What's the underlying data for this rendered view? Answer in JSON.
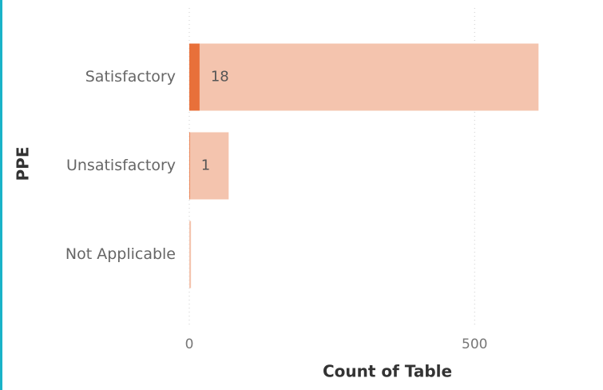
{
  "chart_data": {
    "type": "bar",
    "orientation": "horizontal",
    "x_label": "Count of Table",
    "y_label": "PPE",
    "categories": [
      "Satisfactory",
      "Unsatisfactory",
      "Not Applicable"
    ],
    "series": [
      {
        "color": "#f4c4ae",
        "values": [
          612,
          69,
          3
        ]
      },
      {
        "color": "#e8703a",
        "values": [
          18,
          1,
          0
        ]
      }
    ],
    "xlim": [
      0,
      620
    ],
    "xticks": [
      0,
      500
    ],
    "grid": true
  }
}
